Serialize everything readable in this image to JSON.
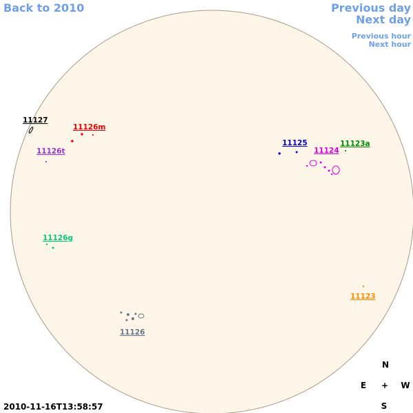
{
  "nav": {
    "back": "Back to 2010",
    "previous_day": "Previous day",
    "next_day": "Next day",
    "previous_hour": "Previous hour",
    "next_hour": "Next hour"
  },
  "timestamp": "2010-11-16T13:58:57",
  "compass": {
    "north": "N",
    "east": "E",
    "center": "+",
    "west": "W",
    "south": "S"
  },
  "regions": [
    {
      "label": "11127",
      "color": "#000000"
    },
    {
      "label": "11126m",
      "color": "#ee0000"
    },
    {
      "label": "11126t",
      "color": "#9933cc"
    },
    {
      "label": "11125",
      "color": "#0000cc"
    },
    {
      "label": "11124",
      "color": "#dd00dd"
    },
    {
      "label": "11123a",
      "color": "#008800"
    },
    {
      "label": "11126g",
      "color": "#00cc77"
    },
    {
      "label": "11123",
      "color": "#ff8800"
    },
    {
      "label": "11126",
      "color": "#667788"
    }
  ]
}
